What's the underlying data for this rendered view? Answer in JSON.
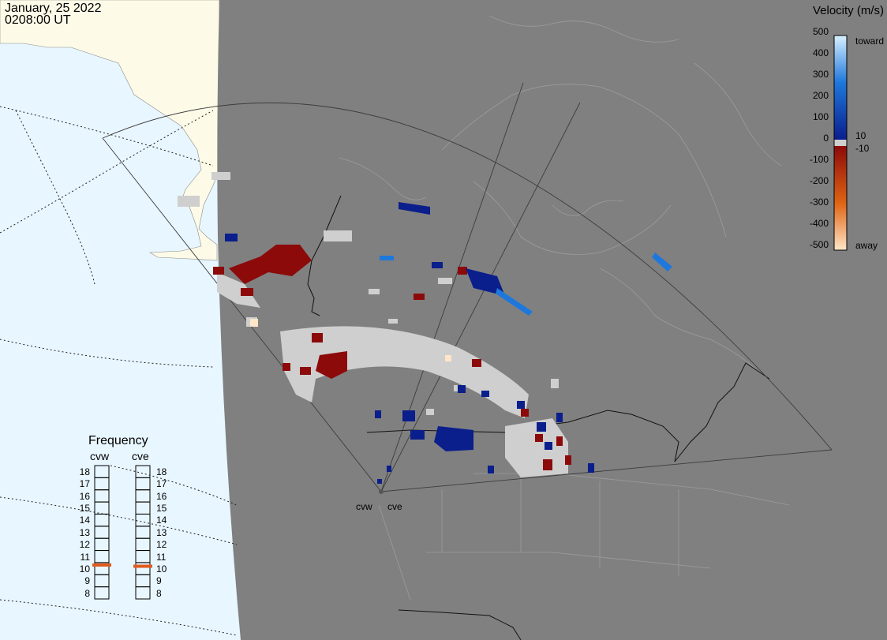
{
  "header": {
    "date": "January, 25 2022",
    "time": "0208:00 UT"
  },
  "velocity_legend": {
    "title": "Velocity (m/s)",
    "ticks": [
      "500",
      "400",
      "300",
      "200",
      "100",
      "0",
      "-100",
      "-200",
      "-300",
      "-400",
      "-500"
    ],
    "toward_label": "toward",
    "away_label": "away",
    "pos_threshold": "10",
    "neg_threshold": "-10",
    "colors": {
      "toward_high": "#d8f0ff",
      "toward_mid": "#1e78dc",
      "toward_low": "#0a1e8c",
      "away_low": "#8c0a0a",
      "away_mid": "#e06414",
      "away_high": "#ffe6c8"
    }
  },
  "frequency": {
    "title": "Frequency",
    "channels": [
      {
        "name": "cvw",
        "value": 10.8
      },
      {
        "name": "cve",
        "value": 10.7
      }
    ],
    "ticks": [
      "18",
      "17",
      "16",
      "15",
      "14",
      "13",
      "12",
      "11",
      "10",
      "9",
      "8"
    ],
    "marker_color": "#e05a1e"
  },
  "radar_sites": [
    {
      "name": "cvw"
    },
    {
      "name": "cve"
    }
  ],
  "map_colors": {
    "land_day": "#fdfbe8",
    "ocean_day": "#e8f6ff",
    "night": "#808080",
    "scatter_ground": "#cfcfcf"
  }
}
